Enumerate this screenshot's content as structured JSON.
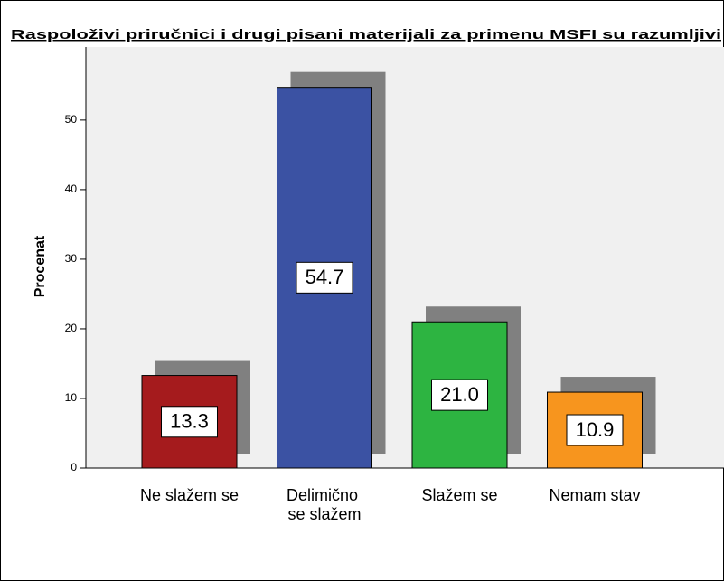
{
  "chart_data": {
    "type": "bar",
    "title": "Raspoloživi priručnici i drugi pisani materijali za primenu MSFI su razumljivi",
    "y_label": "Procenat",
    "categories": [
      "Ne slažem se",
      "Delimično se slažem",
      "Slažem se",
      "Nemam stav"
    ],
    "values": [
      13.3,
      54.7,
      21.0,
      10.9
    ],
    "value_labels": [
      "13.3",
      "54.7",
      "21.0",
      "10.9"
    ],
    "colors": [
      "#a51b1d",
      "#3b52a3",
      "#2db441",
      "#f7951e"
    ],
    "ylim": [
      0,
      60.5
    ],
    "yticks": [
      0,
      10,
      20,
      30,
      40,
      50
    ]
  }
}
